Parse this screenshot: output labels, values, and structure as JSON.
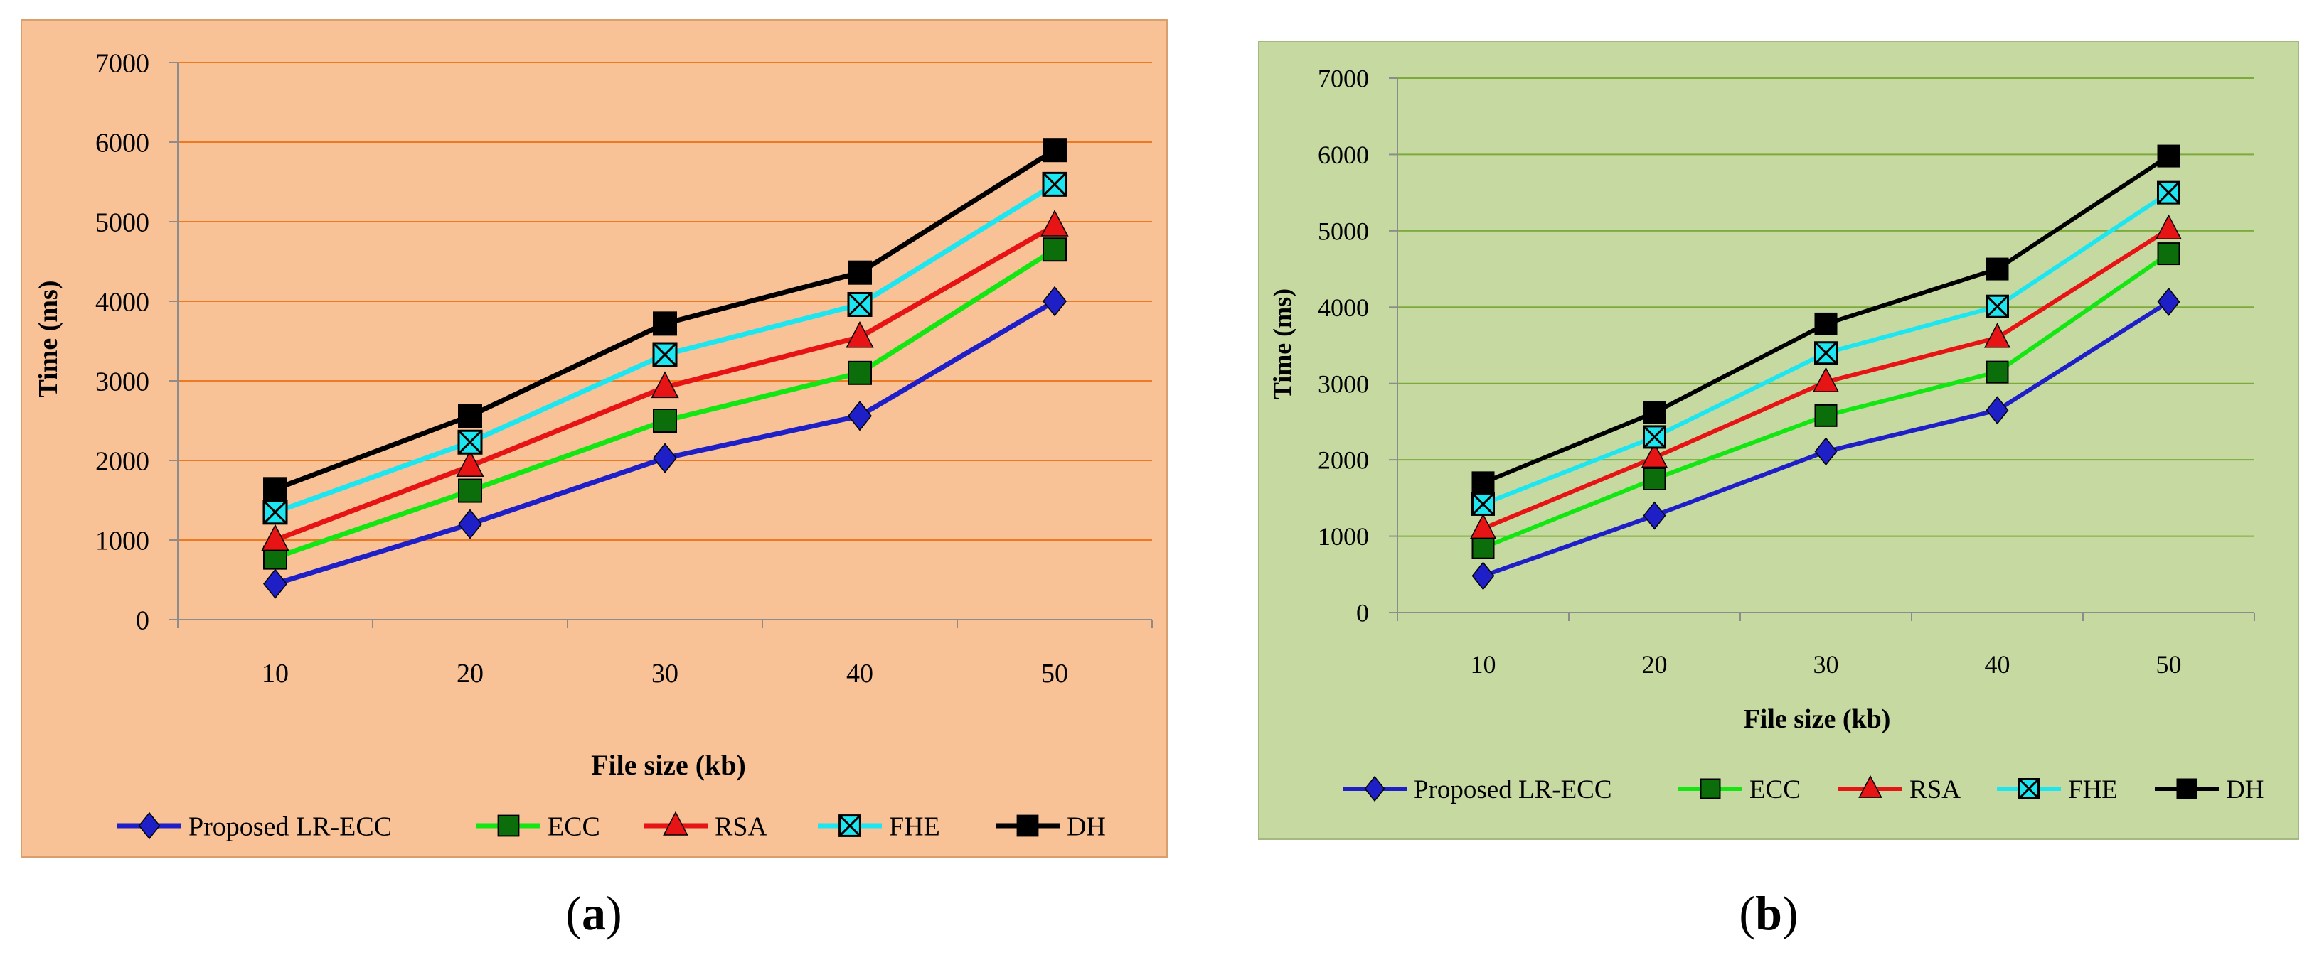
{
  "colors": {
    "panel_a_bg": "#f8c196",
    "panel_b_bg": "#c6d9a0",
    "panel_a_grid": "#ec7a22",
    "panel_b_grid": "#7daa3c",
    "axis": "#8c8c8c",
    "text": "#000000"
  },
  "panels": [
    {
      "caption": "(a)",
      "caption_letter": "a",
      "chart_data": {
        "type": "line",
        "title": "",
        "xlabel": "File size (kb)",
        "ylabel": "Time (ms)",
        "categories": [
          "10",
          "20",
          "30",
          "40",
          "50"
        ],
        "yticks": [
          "0",
          "1000",
          "2000",
          "3000",
          "4000",
          "5000",
          "6000",
          "7000"
        ],
        "ylim": [
          0,
          7000
        ],
        "grid": true,
        "legend_position": "bottom",
        "series": [
          {
            "name": "Proposed LR-ECC",
            "color": "#1f1fc8",
            "marker": "diamond",
            "values": [
              450,
              1200,
              2030,
              2560,
              4000
            ]
          },
          {
            "name": "ECC",
            "color": "#14e614",
            "marker": "square",
            "values": [
              780,
              1620,
              2500,
              3100,
              4650
            ]
          },
          {
            "name": "RSA",
            "color": "#e61414",
            "marker": "triangle",
            "values": [
              1000,
              1930,
              2920,
              3550,
              4950
            ]
          },
          {
            "name": "FHE",
            "color": "#1ee6f0",
            "marker": "xsquare",
            "values": [
              1350,
              2230,
              3330,
              3960,
              5470
            ]
          },
          {
            "name": "DH",
            "color": "#000000",
            "marker": "square",
            "values": [
              1640,
              2560,
              3720,
              4360,
              5900
            ]
          }
        ]
      }
    },
    {
      "caption": "(b)",
      "caption_letter": "b",
      "chart_data": {
        "type": "line",
        "title": "",
        "xlabel": "File size (kb)",
        "ylabel": "Time (ms)",
        "categories": [
          "10",
          "20",
          "30",
          "40",
          "50"
        ],
        "yticks": [
          "0",
          "1000",
          "2000",
          "3000",
          "4000",
          "5000",
          "6000",
          "7000"
        ],
        "ylim": [
          0,
          7000
        ],
        "grid": true,
        "legend_position": "bottom",
        "series": [
          {
            "name": "Proposed LR-ECC",
            "color": "#1f1fc8",
            "marker": "diamond",
            "values": [
              480,
              1270,
              2110,
              2650,
              4070
            ]
          },
          {
            "name": "ECC",
            "color": "#14e614",
            "marker": "square",
            "values": [
              850,
              1750,
              2580,
              3150,
              4700
            ]
          },
          {
            "name": "RSA",
            "color": "#e61414",
            "marker": "triangle",
            "values": [
              1100,
              2030,
              3020,
              3600,
              5020
            ]
          },
          {
            "name": "FHE",
            "color": "#1ee6f0",
            "marker": "xsquare",
            "values": [
              1420,
              2300,
              3400,
              4010,
              5500
            ]
          },
          {
            "name": "DH",
            "color": "#000000",
            "marker": "square",
            "values": [
              1700,
              2620,
              3780,
              4500,
              5980
            ]
          }
        ]
      }
    }
  ]
}
